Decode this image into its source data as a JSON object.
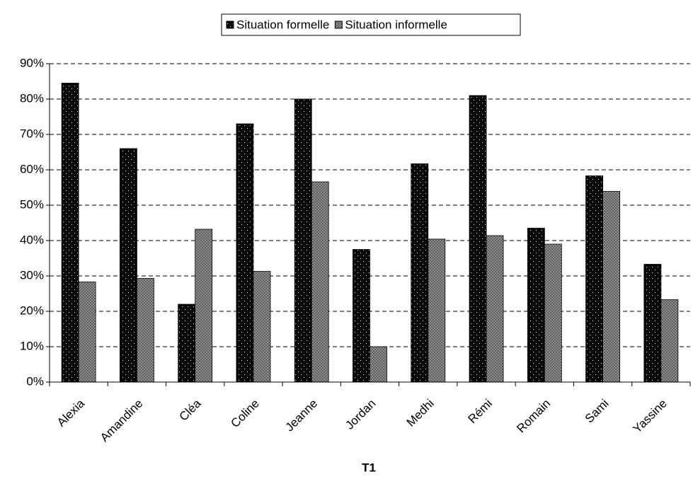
{
  "chart_data": {
    "type": "bar",
    "title": "T1",
    "categories": [
      "Alexia",
      "Amandine",
      "Cléa",
      "Coline",
      "Jeanne",
      "Jordan",
      "Medhi",
      "Rémi",
      "Romain",
      "Sami",
      "Yassine"
    ],
    "series": [
      {
        "name": "Situation formelle",
        "color": "#000000",
        "values": [
          84.5,
          66,
          22,
          73,
          80,
          37.5,
          61.7,
          81,
          43.5,
          58.3,
          33.3
        ]
      },
      {
        "name": "Situation informelle",
        "color": "#999999",
        "values": [
          28.3,
          29.3,
          43.2,
          31.3,
          56.6,
          10,
          40.4,
          41.4,
          39,
          53.9,
          23.3
        ]
      }
    ],
    "ylim": [
      0,
      90
    ],
    "yticks": [
      {
        "value": 0,
        "label": "0%"
      },
      {
        "value": 10,
        "label": "10%"
      },
      {
        "value": 20,
        "label": "20%"
      },
      {
        "value": 30,
        "label": "30%"
      },
      {
        "value": 40,
        "label": "40%"
      },
      {
        "value": 50,
        "label": "50%"
      },
      {
        "value": 60,
        "label": "60%"
      },
      {
        "value": 70,
        "label": "70%"
      },
      {
        "value": 80,
        "label": "80%"
      },
      {
        "value": 90,
        "label": "90%"
      }
    ],
    "grid": true,
    "legend": "top"
  }
}
